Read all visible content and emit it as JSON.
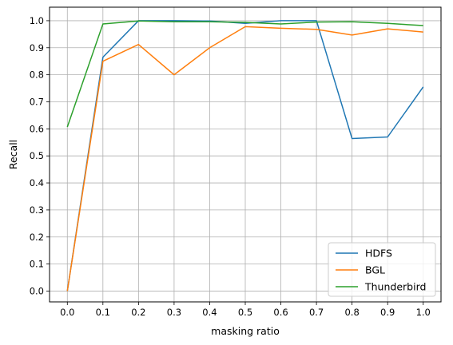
{
  "chart_data": {
    "type": "line",
    "title": "",
    "xlabel": "masking ratio",
    "ylabel": "Recall",
    "x": [
      0.0,
      0.1,
      0.2,
      0.3,
      0.4,
      0.5,
      0.6,
      0.7,
      0.8,
      0.9,
      1.0
    ],
    "x_tick_labels": [
      "0.0",
      "0.1",
      "0.2",
      "0.3",
      "0.4",
      "0.5",
      "0.6",
      "0.7",
      "0.8",
      "0.9",
      "1.0"
    ],
    "y_ticks": [
      0.0,
      0.1,
      0.2,
      0.3,
      0.4,
      0.5,
      0.6,
      0.7,
      0.8,
      0.9,
      1.0
    ],
    "y_tick_labels": [
      "0.0",
      "0.1",
      "0.2",
      "0.3",
      "0.4",
      "0.5",
      "0.6",
      "0.7",
      "0.8",
      "0.9",
      "1.0"
    ],
    "xlim": [
      -0.05,
      1.05
    ],
    "ylim": [
      -0.04,
      1.05
    ],
    "grid": true,
    "legend_position": "lower right",
    "series": [
      {
        "name": "HDFS",
        "color": "#1f77b4",
        "values": [
          0.0,
          0.865,
          1.0,
          1.0,
          0.999,
          0.99,
          1.0,
          1.0,
          0.564,
          0.57,
          0.755
        ]
      },
      {
        "name": "BGL",
        "color": "#ff7f0e",
        "values": [
          0.0,
          0.85,
          0.912,
          0.8,
          0.9,
          0.978,
          0.972,
          0.968,
          0.947,
          0.97,
          0.958
        ]
      },
      {
        "name": "Thunderbird",
        "color": "#2ca02c",
        "values": [
          0.607,
          0.988,
          0.999,
          0.996,
          0.996,
          0.994,
          0.988,
          0.995,
          0.996,
          0.99,
          0.982
        ]
      }
    ]
  }
}
